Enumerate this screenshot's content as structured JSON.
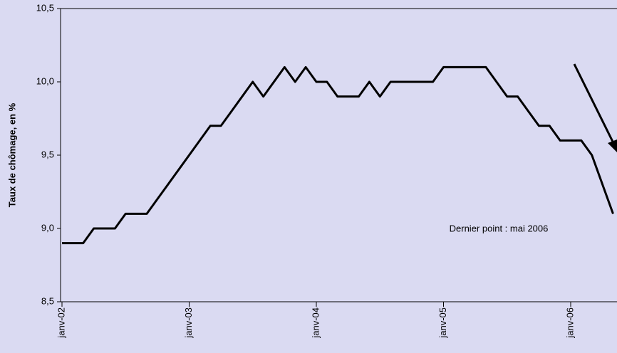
{
  "chart_data": {
    "type": "line",
    "ylabel": "Taux de chômage, en %",
    "annotation": "Dernier point : mai 2006",
    "categories": [
      "janv-02",
      null,
      null,
      null,
      null,
      null,
      null,
      null,
      null,
      null,
      null,
      null,
      "janv-03",
      null,
      null,
      null,
      null,
      null,
      null,
      null,
      null,
      null,
      null,
      null,
      "janv-04",
      null,
      null,
      null,
      null,
      null,
      null,
      null,
      null,
      null,
      null,
      null,
      "janv-05",
      null,
      null,
      null,
      null,
      null,
      null,
      null,
      null,
      null,
      null,
      null,
      "janv-06",
      null,
      null,
      null,
      null
    ],
    "series": [
      {
        "color": "#000000",
        "values": [
          8.9,
          8.9,
          8.9,
          9.0,
          9.0,
          9.0,
          9.1,
          9.1,
          9.1,
          9.2,
          9.3,
          9.4,
          9.5,
          9.6,
          9.7,
          9.7,
          9.8,
          9.9,
          10.0,
          9.9,
          10.0,
          10.1,
          10.0,
          10.1,
          10.0,
          10.0,
          9.9,
          9.9,
          9.9,
          10.0,
          9.9,
          10.0,
          10.0,
          10.0,
          10.0,
          10.0,
          10.1,
          10.1,
          10.1,
          10.1,
          10.1,
          10.0,
          9.9,
          9.9,
          9.8,
          9.7,
          9.7,
          9.6,
          9.6,
          9.6,
          9.5,
          9.3,
          9.1
        ]
      }
    ],
    "ylim": [
      8.5,
      10.5
    ],
    "yticks": [
      {
        "value": 8.5,
        "label": "8,5"
      },
      {
        "value": 9.0,
        "label": "9,0"
      },
      {
        "value": 9.5,
        "label": "9,5"
      },
      {
        "value": 10.0,
        "label": "10,0"
      },
      {
        "value": 10.5,
        "label": "10,5"
      }
    ]
  }
}
